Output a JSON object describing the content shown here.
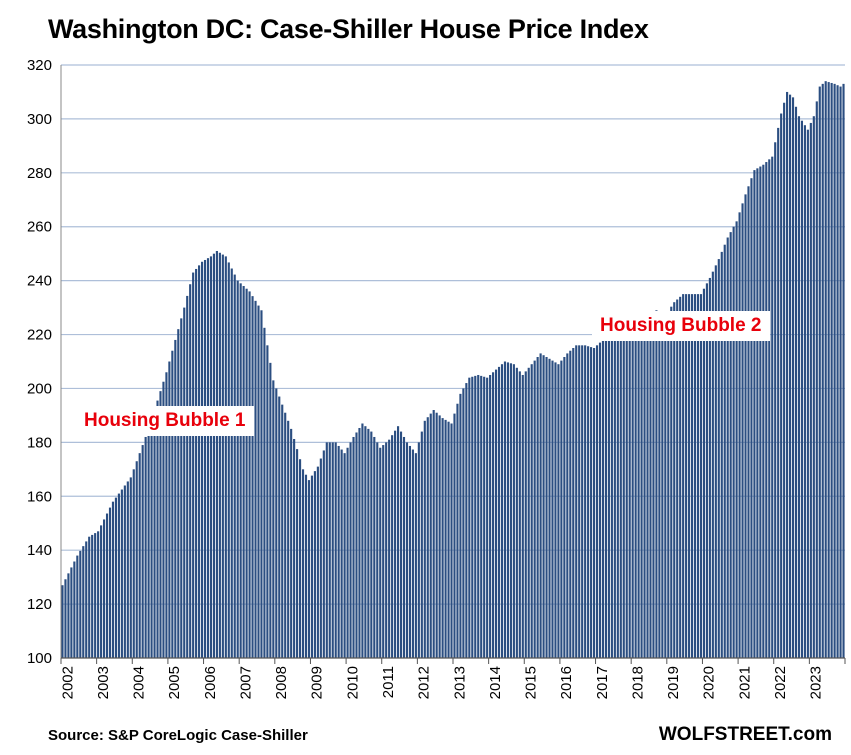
{
  "chart_data": {
    "type": "bar",
    "title": "Washington DC: Case-Shiller House Price Index",
    "xlabel": "",
    "ylabel": "",
    "ylim": [
      100,
      320
    ],
    "yticks": [
      100,
      120,
      140,
      160,
      180,
      200,
      220,
      240,
      260,
      280,
      300,
      320
    ],
    "xtick_labels": [
      "2002",
      "2003",
      "2004",
      "2005",
      "2006",
      "2007",
      "2008",
      "2009",
      "2010",
      "2011",
      "2012",
      "2013",
      "2014",
      "2015",
      "2016",
      "2017",
      "2018",
      "2019",
      "2020",
      "2021",
      "2022",
      "2023"
    ],
    "grid": "horizontal",
    "bar_color": "#2b4e81",
    "start": "2002-01",
    "frequency": "monthly",
    "anchors": [
      [
        "2002-01",
        127
      ],
      [
        "2002-06",
        138
      ],
      [
        "2002-10",
        145
      ],
      [
        "2003-01",
        147
      ],
      [
        "2003-06",
        158
      ],
      [
        "2003-12",
        167
      ],
      [
        "2004-06",
        185
      ],
      [
        "2004-12",
        206
      ],
      [
        "2005-06",
        230
      ],
      [
        "2005-09",
        243
      ],
      [
        "2005-12",
        247
      ],
      [
        "2006-03",
        249
      ],
      [
        "2006-05",
        251
      ],
      [
        "2006-08",
        249
      ],
      [
        "2006-12",
        240
      ],
      [
        "2007-04",
        236
      ],
      [
        "2007-08",
        229
      ],
      [
        "2007-12",
        203
      ],
      [
        "2008-06",
        185
      ],
      [
        "2008-10",
        170
      ],
      [
        "2008-12",
        166
      ],
      [
        "2009-03",
        171
      ],
      [
        "2009-06",
        180
      ],
      [
        "2009-09",
        180
      ],
      [
        "2009-12",
        176
      ],
      [
        "2010-03",
        182
      ],
      [
        "2010-06",
        187
      ],
      [
        "2010-09",
        184
      ],
      [
        "2010-12",
        178
      ],
      [
        "2011-03",
        181
      ],
      [
        "2011-06",
        186
      ],
      [
        "2011-09",
        180
      ],
      [
        "2011-12",
        176
      ],
      [
        "2012-03",
        188
      ],
      [
        "2012-06",
        192
      ],
      [
        "2012-09",
        189
      ],
      [
        "2012-12",
        187
      ],
      [
        "2013-03",
        198
      ],
      [
        "2013-06",
        204
      ],
      [
        "2013-09",
        205
      ],
      [
        "2013-12",
        204
      ],
      [
        "2014-03",
        207
      ],
      [
        "2014-06",
        210
      ],
      [
        "2014-09",
        209
      ],
      [
        "2014-12",
        205
      ],
      [
        "2015-03",
        209
      ],
      [
        "2015-06",
        213
      ],
      [
        "2015-09",
        211
      ],
      [
        "2015-12",
        209
      ],
      [
        "2016-03",
        213
      ],
      [
        "2016-06",
        216
      ],
      [
        "2016-09",
        216
      ],
      [
        "2016-12",
        215
      ],
      [
        "2017-03",
        218
      ],
      [
        "2017-06",
        222
      ],
      [
        "2017-09",
        221
      ],
      [
        "2017-12",
        219
      ],
      [
        "2018-03",
        224
      ],
      [
        "2018-06",
        228
      ],
      [
        "2018-09",
        229
      ],
      [
        "2018-12",
        227
      ],
      [
        "2019-03",
        232
      ],
      [
        "2019-06",
        235
      ],
      [
        "2019-09",
        235
      ],
      [
        "2019-12",
        235
      ],
      [
        "2020-03",
        241
      ],
      [
        "2020-06",
        248
      ],
      [
        "2020-09",
        256
      ],
      [
        "2020-12",
        262
      ],
      [
        "2021-03",
        272
      ],
      [
        "2021-06",
        281
      ],
      [
        "2021-09",
        283
      ],
      [
        "2021-12",
        286
      ],
      [
        "2022-03",
        302
      ],
      [
        "2022-05",
        310
      ],
      [
        "2022-07",
        308
      ],
      [
        "2022-09",
        301
      ],
      [
        "2022-12",
        296
      ],
      [
        "2023-02",
        301
      ],
      [
        "2023-04",
        312
      ],
      [
        "2023-06",
        314
      ],
      [
        "2023-09",
        313
      ],
      [
        "2023-11",
        312
      ],
      [
        "2023-12",
        313
      ]
    ]
  },
  "title": "Washington DC: Case-Shiller House Price Index",
  "annotations": {
    "bubble_1": "Housing Bubble 1",
    "bubble_2": "Housing Bubble 2"
  },
  "footer": {
    "source": "Source: S&P CoreLogic Case-Shiller",
    "brand": "WOLFSTREET.com"
  }
}
